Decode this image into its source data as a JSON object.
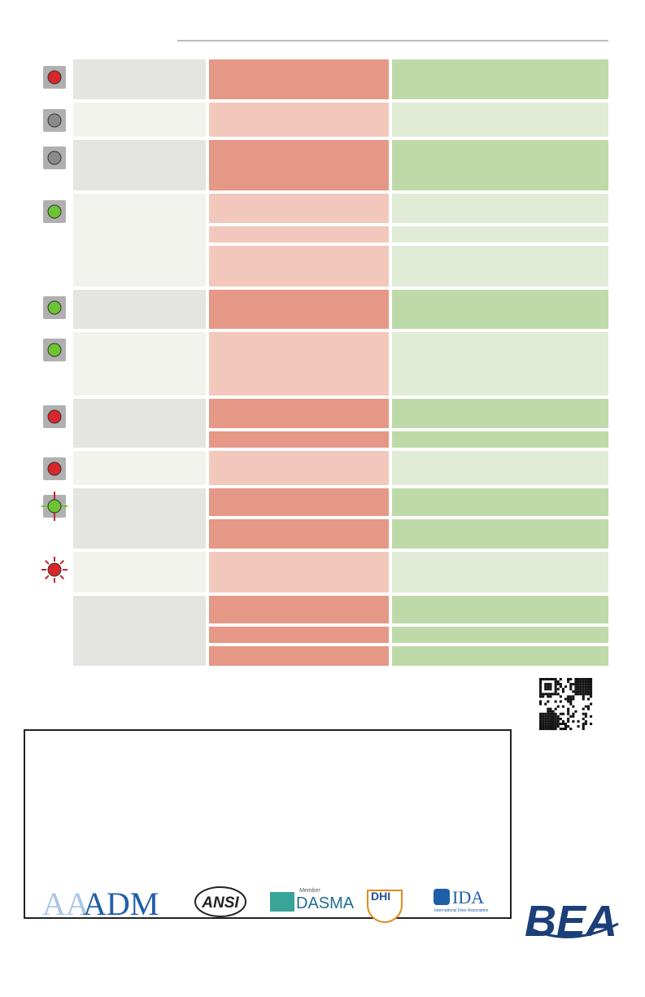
{
  "logos": {
    "aaadm": "ADM",
    "ansi": "ANSI",
    "dasma_member": "Member",
    "dasma": "DASMA",
    "dhi": "DHI",
    "ida": "IDA",
    "ida_sub": "International Door Association",
    "bea": "BEA"
  }
}
